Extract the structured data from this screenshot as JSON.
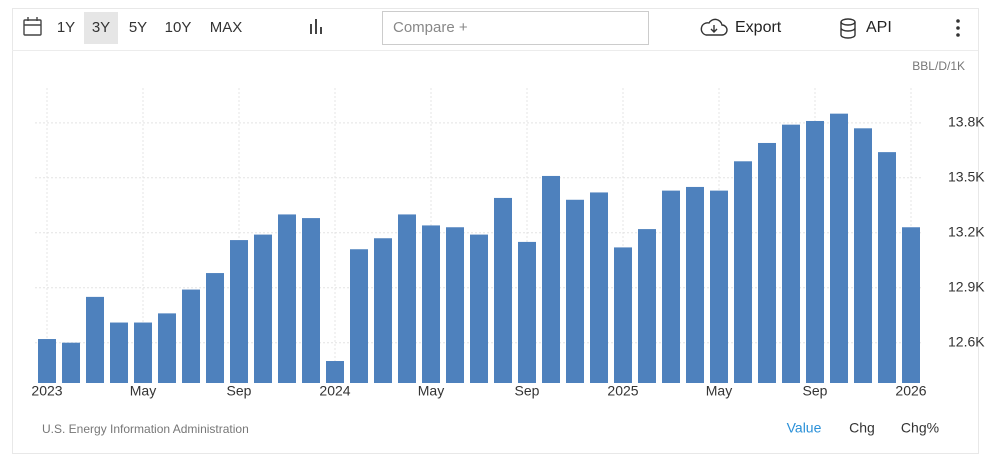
{
  "toolbar": {
    "ranges": [
      "1Y",
      "3Y",
      "5Y",
      "10Y",
      "MAX"
    ],
    "selected_range": "3Y",
    "compare_placeholder": "Compare +",
    "export": "Export",
    "api": "API"
  },
  "chart_data": {
    "type": "bar",
    "y_unit": "BBL/D/1K",
    "source": "U.S. Energy Information Administration",
    "categories": [
      "2023",
      null,
      null,
      null,
      "May",
      null,
      null,
      null,
      "Sep",
      null,
      null,
      null,
      "2024",
      null,
      null,
      null,
      "May",
      null,
      null,
      null,
      "Sep",
      null,
      null,
      null,
      "2025",
      null,
      null,
      null,
      "May",
      null,
      null,
      null,
      "Sep",
      null,
      null,
      null,
      "2026"
    ],
    "values": [
      12620,
      12600,
      12850,
      12710,
      12710,
      12760,
      12890,
      12980,
      13160,
      13190,
      13300,
      13280,
      12500,
      13110,
      13170,
      13300,
      13240,
      13230,
      13190,
      13390,
      13150,
      13510,
      13380,
      13420,
      13120,
      13220,
      13430,
      13450,
      13430,
      13590,
      13690,
      13790,
      13810,
      13850,
      13770,
      13640,
      13230
    ],
    "color": "#4e81bd",
    "ylim": [
      12380,
      13990
    ],
    "yticks": [
      {
        "value": 12600,
        "label": "12.6K"
      },
      {
        "value": 12900,
        "label": "12.9K"
      },
      {
        "value": 13200,
        "label": "13.2K"
      },
      {
        "value": 13500,
        "label": "13.5K"
      },
      {
        "value": 13800,
        "label": "13.8K"
      }
    ],
    "grid": true,
    "y_axis_side": "right"
  },
  "footer": {
    "modes": [
      "Value",
      "Chg",
      "Chg%"
    ],
    "selected_mode": "Value"
  }
}
